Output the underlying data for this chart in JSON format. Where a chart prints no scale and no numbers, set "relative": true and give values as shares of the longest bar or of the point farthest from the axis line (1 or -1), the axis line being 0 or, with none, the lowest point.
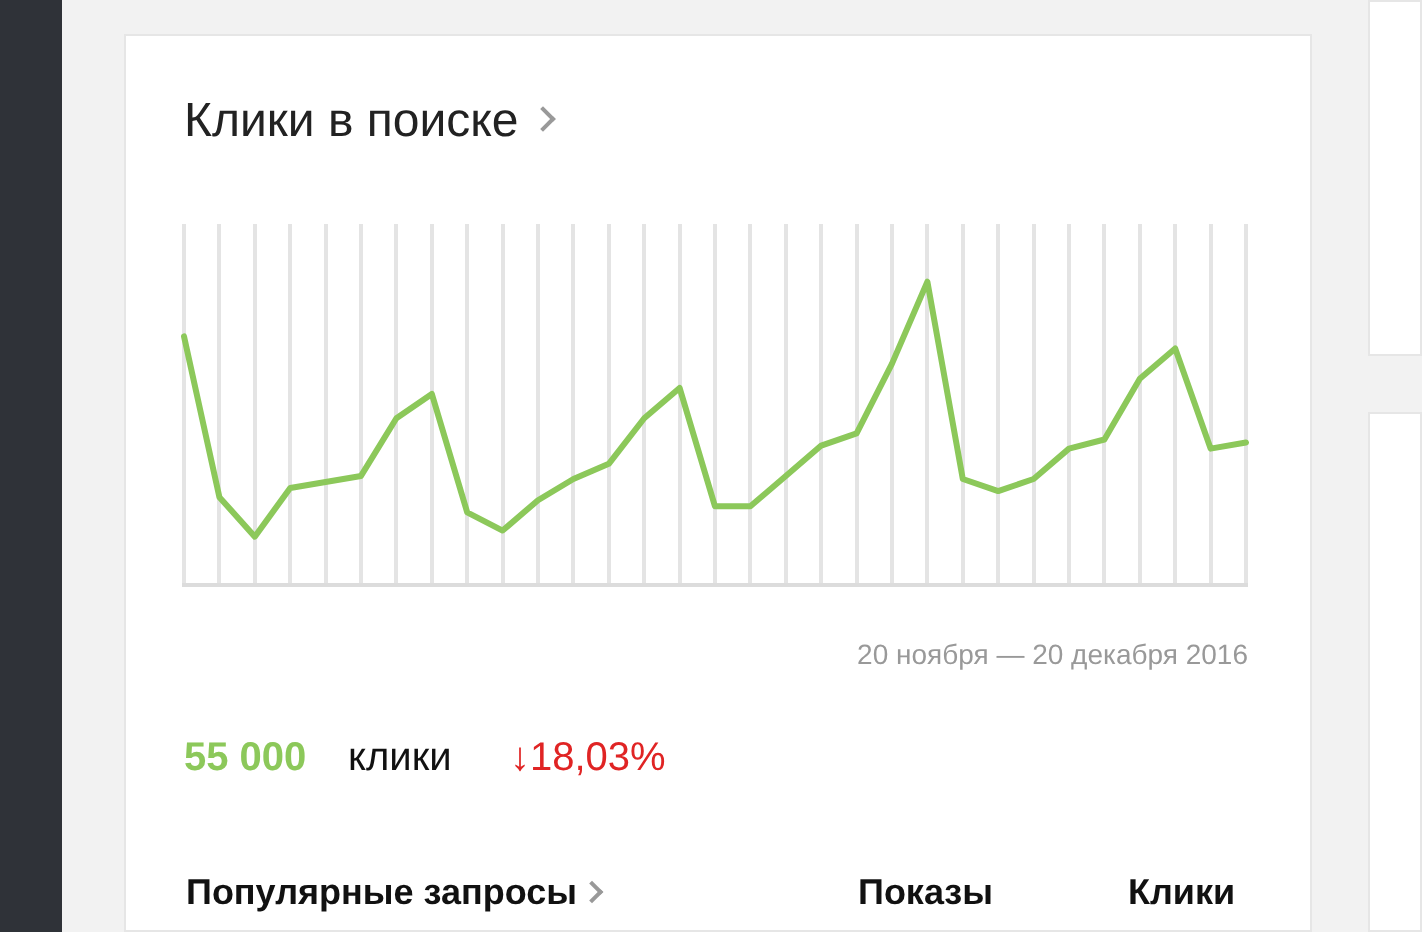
{
  "chart_data": {
    "type": "line",
    "title": "Клики в поиске",
    "relative": true,
    "grid": "x",
    "legend": false,
    "marker": "none",
    "line_style": "solid",
    "categories": [
      null,
      null,
      null,
      null,
      null,
      null,
      null,
      null,
      null,
      null,
      null,
      null,
      null,
      null,
      null,
      null,
      null,
      null,
      null,
      null,
      null,
      null,
      null,
      null,
      null,
      null,
      null,
      null,
      null,
      null,
      null
    ],
    "series": [
      {
        "color": "#8cc85a",
        "values": [
          0.82,
          0.29,
          0.16,
          0.32,
          0.34,
          0.36,
          0.55,
          0.63,
          0.24,
          0.18,
          0.28,
          0.35,
          0.4,
          0.55,
          0.65,
          0.26,
          0.26,
          0.36,
          0.46,
          0.5,
          0.73,
          1,
          0.35,
          0.31,
          0.35,
          0.45,
          0.48,
          0.68,
          0.78,
          0.45,
          0.47
        ]
      }
    ],
    "annotations": [
      "20 ноября — 20 декабря 2016",
      "55 000",
      "клики",
      "↓18,03%",
      "Популярные запросы",
      "Показы",
      "Клики"
    ]
  }
}
